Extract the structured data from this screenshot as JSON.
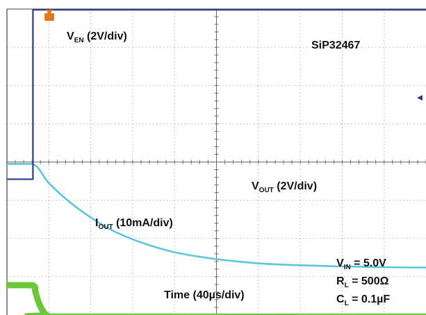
{
  "chart_data": {
    "type": "line",
    "device": "SiP32467",
    "xlabel": "Time (40µs/div)",
    "x_divisions": 10,
    "y_divisions": 8,
    "grid": true,
    "colors": {
      "ven": "#2d3a8c",
      "vout": "#5cc6d6",
      "iout": "#6cc83a",
      "grid": "#9a9a9a",
      "marker": "#e07820"
    },
    "series": [
      {
        "name_main": "V",
        "name_sub": "EN",
        "name_tail": " (2V/div)",
        "scale": "2V/div",
        "unit": "div",
        "points": [
          [
            0.0,
            3.55
          ],
          [
            0.62,
            3.55
          ],
          [
            0.62,
            7.98
          ],
          [
            10.0,
            7.98
          ]
        ]
      },
      {
        "name_main": "V",
        "name_sub": "OUT",
        "name_tail": " (2V/div)",
        "scale": "2V/div",
        "unit": "div",
        "points": [
          [
            0.0,
            3.95
          ],
          [
            0.62,
            3.95
          ],
          [
            1.0,
            3.45
          ],
          [
            1.5,
            2.95
          ],
          [
            2.0,
            2.55
          ],
          [
            2.5,
            2.22
          ],
          [
            3.0,
            1.98
          ],
          [
            3.5,
            1.79
          ],
          [
            4.0,
            1.64
          ],
          [
            4.5,
            1.54
          ],
          [
            5.0,
            1.46
          ],
          [
            5.5,
            1.4
          ],
          [
            6.0,
            1.35
          ],
          [
            6.5,
            1.32
          ],
          [
            7.0,
            1.3
          ],
          [
            8.0,
            1.27
          ],
          [
            9.0,
            1.25
          ],
          [
            10.0,
            1.24
          ]
        ]
      },
      {
        "name_main": "I",
        "name_sub": "OUT",
        "name_tail": " (10mA/div)",
        "scale": "10mA/div",
        "unit": "div",
        "points": [
          [
            0.0,
            0.78
          ],
          [
            0.6,
            0.78
          ],
          [
            0.68,
            0.6
          ],
          [
            0.75,
            0.35
          ],
          [
            0.85,
            0.12
          ],
          [
            0.95,
            0.0
          ],
          [
            1.2,
            -0.04
          ],
          [
            10.0,
            -0.04
          ]
        ]
      }
    ],
    "annotations": {
      "vin_main": "V",
      "vin_sub": "IN",
      "vin_tail": " = 5.0V",
      "rl_main": "R",
      "rl_sub": "L",
      "rl_tail": " = 500Ω",
      "cl_main": "C",
      "cl_sub": "L",
      "cl_tail": " = 0.1µF"
    }
  }
}
